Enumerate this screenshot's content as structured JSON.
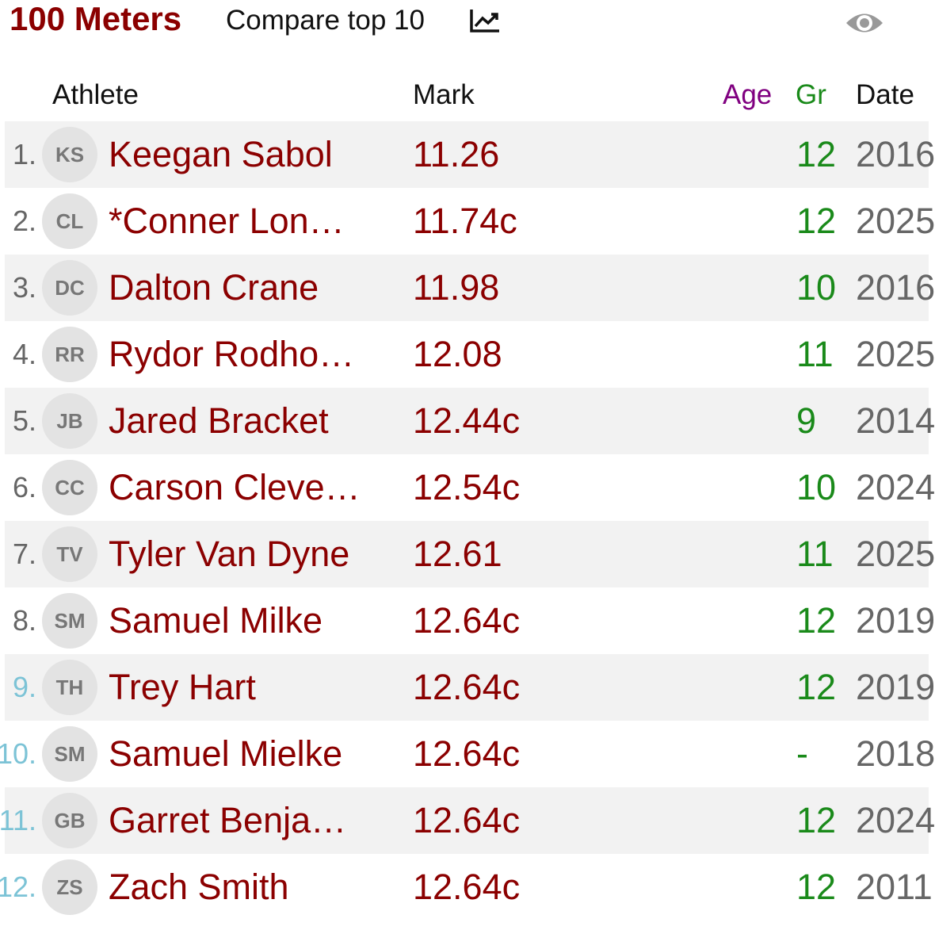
{
  "header": {
    "title": "100 Meters",
    "subtitle": "Compare top 10"
  },
  "table": {
    "columns": [
      "Athlete",
      "Mark",
      "Age",
      "Gr",
      "Date"
    ],
    "rows": [
      [
        "1.",
        "KS",
        "Keegan Sabol",
        "11.26",
        "12",
        "2016"
      ],
      [
        "2.",
        "CL",
        "*Conner Lon…",
        "11.74c",
        "12",
        "2025"
      ],
      [
        "3.",
        "DC",
        "Dalton Crane",
        "11.98",
        "10",
        "2016"
      ],
      [
        "4.",
        "RR",
        "Rydor Rodho…",
        "12.08",
        "11",
        "2025"
      ],
      [
        "5.",
        "JB",
        "Jared Bracket",
        "12.44c",
        "9",
        "2014"
      ],
      [
        "6.",
        "CC",
        "Carson Cleve…",
        "12.54c",
        "10",
        "2024"
      ],
      [
        "7.",
        "TV",
        "Tyler Van Dyne",
        "12.61",
        "11",
        "2025"
      ],
      [
        "8.",
        "SM",
        "Samuel Milke",
        "12.64c",
        "12",
        "2019"
      ],
      [
        "9.",
        "TH",
        "Trey Hart",
        "12.64c",
        "12",
        "2019"
      ],
      [
        "10.",
        "SM",
        "Samuel Mielke",
        "12.64c",
        "-",
        "2018"
      ],
      [
        "11.",
        "GB",
        "Garret Benja…",
        "12.64c",
        "12",
        "2024"
      ],
      [
        "12.",
        "ZS",
        "Zach Smith",
        "12.64c",
        "12",
        "2011"
      ]
    ]
  }
}
